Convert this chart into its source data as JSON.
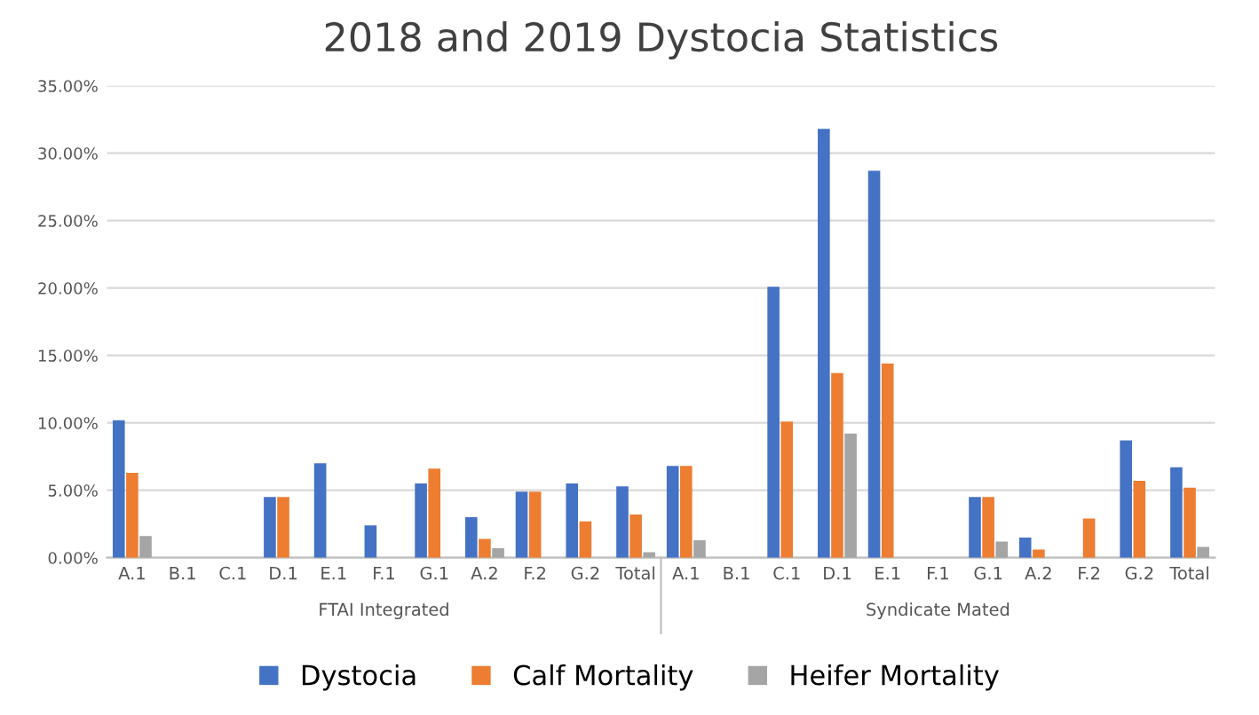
{
  "chart_data": {
    "type": "bar",
    "title": "2018 and 2019 Dystocia Statistics",
    "categories": [
      "A.1",
      "B.1",
      "C.1",
      "D.1",
      "E.1",
      "F.1",
      "G.1",
      "A.2",
      "F.2",
      "G.2",
      "Total",
      "A.1",
      "B.1",
      "C.1",
      "D.1",
      "E.1",
      "F.1",
      "G.1",
      "A.2",
      "F.2",
      "G.2",
      "Total"
    ],
    "series": [
      {
        "name": "Dystocia",
        "color": "#4472c4",
        "values": [
          10.2,
          0,
          0,
          4.5,
          7.0,
          2.4,
          5.5,
          3.0,
          4.9,
          5.5,
          5.3,
          6.8,
          0,
          20.1,
          31.8,
          28.7,
          0,
          4.5,
          1.5,
          0,
          8.7,
          6.7
        ]
      },
      {
        "name": "Calf Mortality",
        "color": "#ed7d31",
        "values": [
          6.3,
          0,
          0,
          4.5,
          0,
          0,
          6.6,
          1.4,
          4.9,
          2.7,
          3.2,
          6.8,
          0,
          10.1,
          13.7,
          14.4,
          0,
          4.5,
          0.6,
          2.9,
          5.7,
          5.2
        ]
      },
      {
        "name": "Heifer Mortality",
        "color": "#a5a5a5",
        "values": [
          1.6,
          0,
          0,
          0,
          0,
          0,
          0,
          0.7,
          0,
          0,
          0.4,
          1.3,
          0,
          0,
          9.2,
          0,
          0,
          1.2,
          0,
          0,
          0,
          0.8
        ]
      }
    ],
    "annotations": [
      "FTAI Integrated",
      "Syndicate Mated"
    ],
    "ylim": [
      0,
      35
    ],
    "yticks": [
      {
        "value": 0,
        "label": "0.00%"
      },
      {
        "value": 5,
        "label": "5.00%"
      },
      {
        "value": 10,
        "label": "10.00%"
      },
      {
        "value": 15,
        "label": "15.00%"
      },
      {
        "value": 20,
        "label": "20.00%"
      },
      {
        "value": 25,
        "label": "25.00%"
      },
      {
        "value": 30,
        "label": "30.00%"
      },
      {
        "value": 35,
        "label": "35.00%"
      }
    ],
    "grid": "y",
    "legend": "bottom"
  }
}
